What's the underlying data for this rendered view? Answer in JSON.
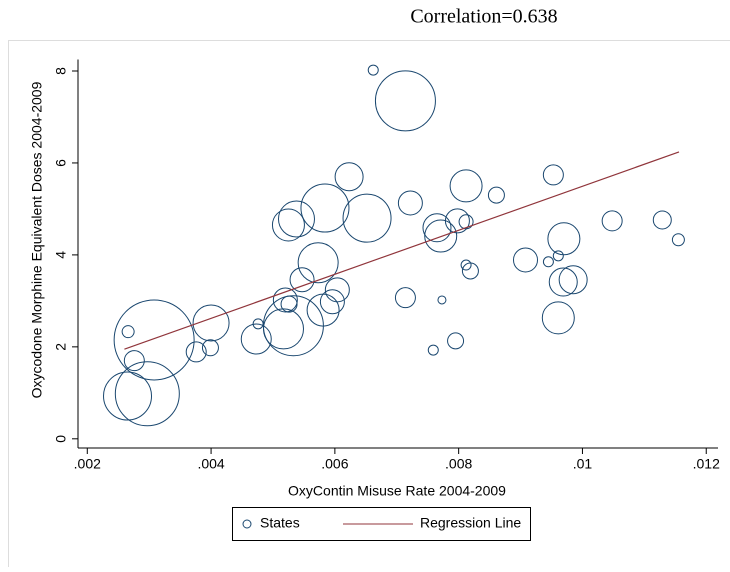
{
  "chart_data": {
    "type": "scatter",
    "title": "Correlation=0.638",
    "x_label": "OxyContin Misuse Rate 2004-2009",
    "y_label": "Oxycodone Morphine Equivalent Doses 2004-2009",
    "series": [
      {
        "name": "States",
        "type": "bubble",
        "color": "#1a476f",
        "x": [
          0.00266,
          0.00276,
          0.00265,
          0.00297,
          0.00308,
          0.00376,
          0.00399,
          0.004,
          0.00473,
          0.00476,
          0.00517,
          0.00533,
          0.0052,
          0.00526,
          0.00547,
          0.00573,
          0.00581,
          0.00596,
          0.00604,
          0.00525,
          0.00538,
          0.00584,
          0.00652,
          0.00623,
          0.00662,
          0.00714,
          0.00722,
          0.00714,
          0.00765,
          0.00771,
          0.00773,
          0.00759,
          0.00795,
          0.00798,
          0.00812,
          0.00812,
          0.00812,
          0.00819,
          0.00861,
          0.00908,
          0.00945,
          0.00953,
          0.00961,
          0.00961,
          0.00969,
          0.0097,
          0.00985,
          0.01048,
          0.01129,
          0.01155
        ],
        "values": [
          2.33,
          1.7,
          0.93,
          0.98,
          2.15,
          1.89,
          1.98,
          2.52,
          2.17,
          2.5,
          2.39,
          2.46,
          3.02,
          2.93,
          3.46,
          3.83,
          2.8,
          2.98,
          3.24,
          4.65,
          4.78,
          5.02,
          4.8,
          5.7,
          8.02,
          7.35,
          5.13,
          3.07,
          4.59,
          4.41,
          3.02,
          1.93,
          2.13,
          4.74,
          5.5,
          4.72,
          3.78,
          3.65,
          5.3,
          3.89,
          3.85,
          5.74,
          3.98,
          2.63,
          3.41,
          4.35,
          3.46,
          4.74,
          4.76,
          4.33
        ],
        "sizes": [
          6,
          10,
          24,
          32,
          40,
          10,
          8,
          18,
          15,
          5,
          20,
          30,
          12,
          8,
          12,
          20,
          16,
          12,
          12,
          16,
          18,
          24,
          24,
          14,
          5,
          30,
          12,
          10,
          14,
          16,
          4,
          5,
          8,
          12,
          16,
          7,
          5,
          8,
          8,
          12,
          5,
          10,
          5,
          16,
          14,
          16,
          14,
          10,
          9,
          6
        ]
      },
      {
        "name": "Regression Line",
        "type": "line",
        "color": "#90353b",
        "x": [
          0.0026,
          0.01156
        ],
        "values": [
          1.95,
          6.24
        ]
      }
    ],
    "xlim": [
      0.00185,
      0.01219
    ],
    "ylim": [
      -0.2,
      8.25
    ],
    "xticks": [
      {
        "value": 0.002,
        "label": ".002"
      },
      {
        "value": 0.004,
        "label": ".004"
      },
      {
        "value": 0.006,
        "label": ".006"
      },
      {
        "value": 0.008,
        "label": ".008"
      },
      {
        "value": 0.01,
        "label": ".01"
      },
      {
        "value": 0.012,
        "label": ".012"
      }
    ],
    "yticks": [
      0,
      2,
      4,
      6,
      8
    ],
    "legend": "bottom",
    "grid": false
  }
}
